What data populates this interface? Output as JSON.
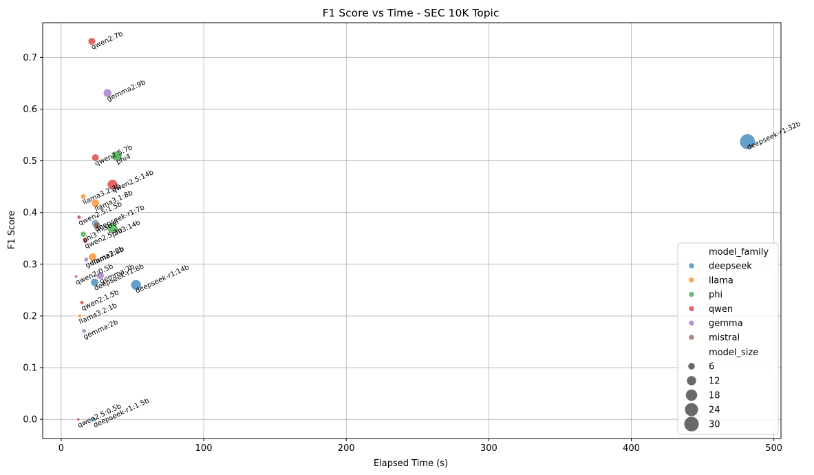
{
  "chart_data": {
    "type": "scatter",
    "title": "F1 Score vs Time - SEC 10K Topic",
    "xlabel": "Elapsed Time (s)",
    "ylabel": "F1 Score",
    "xlim": [
      -13,
      505
    ],
    "ylim": [
      -0.037,
      0.767
    ],
    "xticks": [
      0,
      100,
      200,
      300,
      400,
      500
    ],
    "yticks": [
      0.0,
      0.1,
      0.2,
      0.3,
      0.4,
      0.5,
      0.6,
      0.7
    ],
    "grid": true,
    "legend_position": "bottom-right",
    "hue_title": "model_family",
    "size_title": "model_size",
    "families": [
      {
        "name": "deepseek",
        "color": "#1f77b4"
      },
      {
        "name": "llama",
        "color": "#ff7f0e"
      },
      {
        "name": "phi",
        "color": "#2ca02c"
      },
      {
        "name": "qwen",
        "color": "#d62728"
      },
      {
        "name": "gemma",
        "color": "#9467bd"
      },
      {
        "name": "mistral",
        "color": "#8c564b"
      }
    ],
    "size_legend": [
      6,
      12,
      18,
      24,
      30
    ],
    "points": [
      {
        "label": "qwen2:7b",
        "family": "qwen",
        "size": 7,
        "x": 21.5,
        "y": 0.731
      },
      {
        "label": "gemma2:9b",
        "family": "gemma",
        "size": 9,
        "x": 32.5,
        "y": 0.631
      },
      {
        "label": "deepseek-r1:32b",
        "family": "deepseek",
        "size": 32,
        "x": 481.5,
        "y": 0.537
      },
      {
        "label": "qwen2.5:7b",
        "family": "qwen",
        "size": 7,
        "x": 24,
        "y": 0.506
      },
      {
        "label": "phi4",
        "family": "phi",
        "size": 14,
        "x": 39,
        "y": 0.509
      },
      {
        "label": "qwen2.5:14b",
        "family": "qwen",
        "size": 14,
        "x": 36,
        "y": 0.454
      },
      {
        "label": "llama3.2:3b",
        "family": "llama",
        "size": 3,
        "x": 15.5,
        "y": 0.431
      },
      {
        "label": "llama3.1:8b",
        "family": "llama",
        "size": 8,
        "x": 24,
        "y": 0.418
      },
      {
        "label": "qwen2.5:1.5b",
        "family": "qwen",
        "size": 1.5,
        "x": 12.5,
        "y": 0.391
      },
      {
        "label": "deepseek-r1:7b",
        "family": "deepseek",
        "size": 7,
        "x": 24,
        "y": 0.379
      },
      {
        "label": "mistral",
        "family": "mistral",
        "size": 7,
        "x": 25,
        "y": 0.375
      },
      {
        "label": "phi3:14b",
        "family": "phi",
        "size": 14,
        "x": 36,
        "y": 0.369
      },
      {
        "label": "phi3",
        "family": "phi",
        "size": 3.8,
        "x": 15.5,
        "y": 0.358
      },
      {
        "label": "qwen2.5:3b",
        "family": "qwen",
        "size": 3,
        "x": 17,
        "y": 0.346
      },
      {
        "label": "llama3:8b",
        "family": "llama",
        "size": 8,
        "x": 22,
        "y": 0.314
      },
      {
        "label": "gemma2:2b",
        "family": "gemma",
        "size": 2,
        "x": 17.5,
        "y": 0.309
      },
      {
        "label": "qwen2:0.5b",
        "family": "qwen",
        "size": 0.5,
        "x": 10.5,
        "y": 0.276
      },
      {
        "label": "gemma:7b",
        "family": "gemma",
        "size": 7,
        "x": 27.5,
        "y": 0.278
      },
      {
        "label": "deepseek-r1:8b",
        "family": "deepseek",
        "size": 8,
        "x": 23.5,
        "y": 0.265
      },
      {
        "label": "deepseek-r1:14b",
        "family": "deepseek",
        "size": 14,
        "x": 52.5,
        "y": 0.26
      },
      {
        "label": "qwen2:1.5b",
        "family": "qwen",
        "size": 1.5,
        "x": 14.5,
        "y": 0.226
      },
      {
        "label": "llama3.2:1b",
        "family": "llama",
        "size": 1,
        "x": 13,
        "y": 0.2
      },
      {
        "label": "gemma:2b",
        "family": "gemma",
        "size": 2,
        "x": 16,
        "y": 0.171
      },
      {
        "label": "qwen2.5:0.5b",
        "family": "qwen",
        "size": 0.5,
        "x": 12,
        "y": 0.0
      },
      {
        "label": "deepseek-r1:1.5b",
        "family": "deepseek",
        "size": 1.5,
        "x": 23,
        "y": 0.0
      }
    ]
  }
}
